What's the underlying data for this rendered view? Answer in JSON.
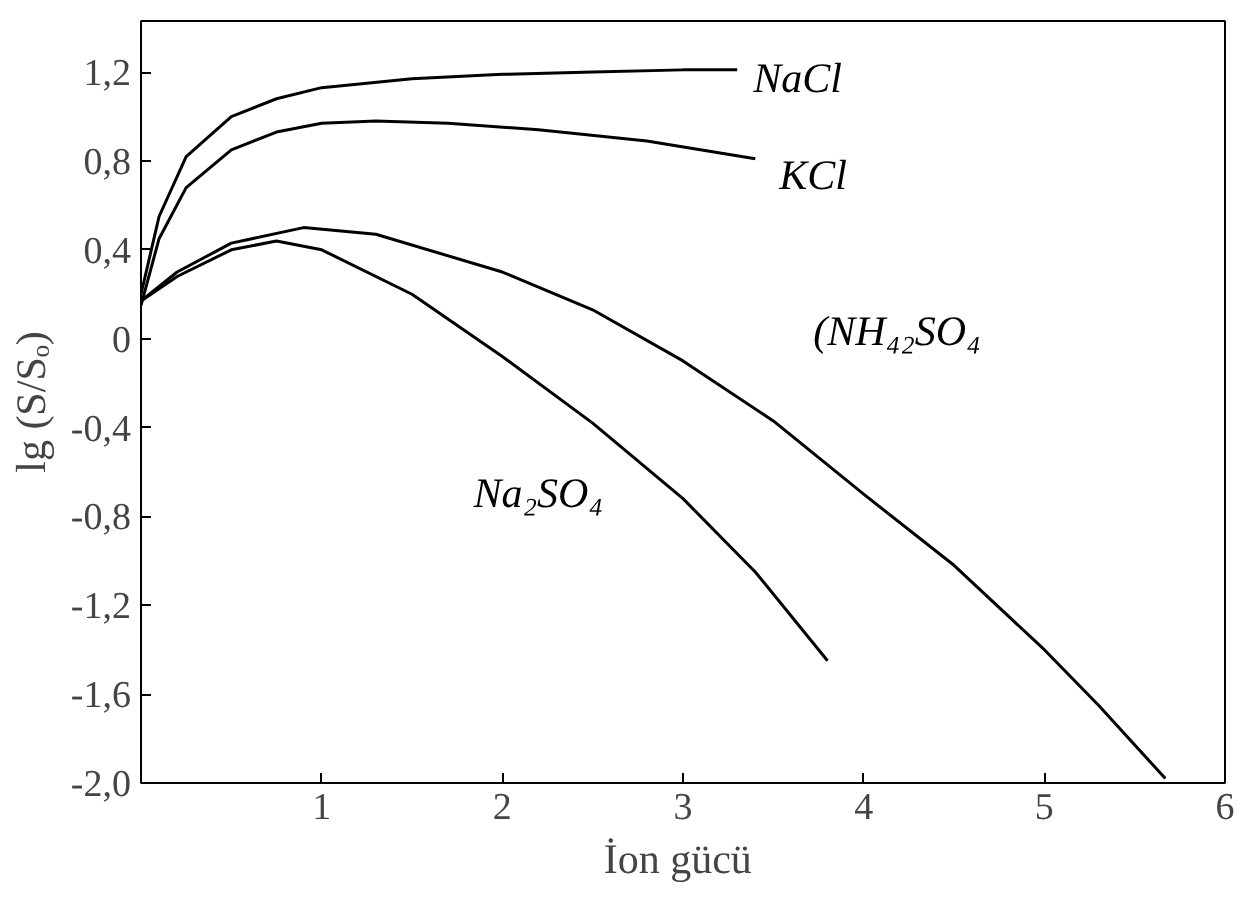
{
  "chart_data": {
    "type": "line",
    "xlabel": "İon  gücü",
    "ylabel": "lg (S/Sₒ)",
    "xlim": [
      0,
      6
    ],
    "ylim": [
      -2.0,
      1.43
    ],
    "xticks": [
      1,
      2,
      3,
      4,
      5,
      6
    ],
    "yticks": [
      {
        "value": -2.0,
        "label": "-2,0"
      },
      {
        "value": -1.6,
        "label": "-1,6"
      },
      {
        "value": -1.2,
        "label": "-1,2"
      },
      {
        "value": -0.8,
        "label": "-0,8"
      },
      {
        "value": -0.4,
        "label": "-0,4"
      },
      {
        "value": 0,
        "label": "0"
      },
      {
        "value": 0.4,
        "label": "0,4"
      },
      {
        "value": 0.8,
        "label": "0,8"
      },
      {
        "value": 1.2,
        "label": "1,2"
      }
    ],
    "grid": false,
    "marker": "none",
    "line_style": "solid",
    "series": [
      {
        "name": "NaCl",
        "color": "#000000",
        "x": [
          0,
          0.1,
          0.25,
          0.5,
          0.75,
          1,
          1.5,
          2,
          2.5,
          3,
          3.3
        ],
        "values": [
          0.2,
          0.55,
          0.82,
          1.0,
          1.08,
          1.13,
          1.17,
          1.19,
          1.2,
          1.21,
          1.21
        ]
      },
      {
        "name": "KCl",
        "color": "#000000",
        "x": [
          0,
          0.1,
          0.25,
          0.5,
          0.75,
          1,
          1.3,
          1.7,
          2.2,
          2.8,
          3.4
        ],
        "values": [
          0.15,
          0.45,
          0.68,
          0.85,
          0.93,
          0.97,
          0.98,
          0.97,
          0.94,
          0.89,
          0.81
        ]
      },
      {
        "name": "(NH₄₂SO₄",
        "color": "#000000",
        "x": [
          0,
          0.2,
          0.5,
          0.9,
          1.3,
          2,
          2.5,
          3,
          3.5,
          4,
          4.5,
          5,
          5.3,
          5.67
        ],
        "values": [
          0.17,
          0.3,
          0.43,
          0.5,
          0.47,
          0.3,
          0.13,
          -0.1,
          -0.37,
          -0.7,
          -1.02,
          -1.4,
          -1.65,
          -1.98
        ]
      },
      {
        "name": "Na₂SO₄",
        "color": "#000000",
        "x": [
          0,
          0.2,
          0.5,
          0.75,
          1,
          1.5,
          2,
          2.5,
          3,
          3.4,
          3.8
        ],
        "values": [
          0.17,
          0.28,
          0.4,
          0.44,
          0.4,
          0.2,
          -0.08,
          -0.38,
          -0.72,
          -1.05,
          -1.45
        ]
      }
    ]
  }
}
